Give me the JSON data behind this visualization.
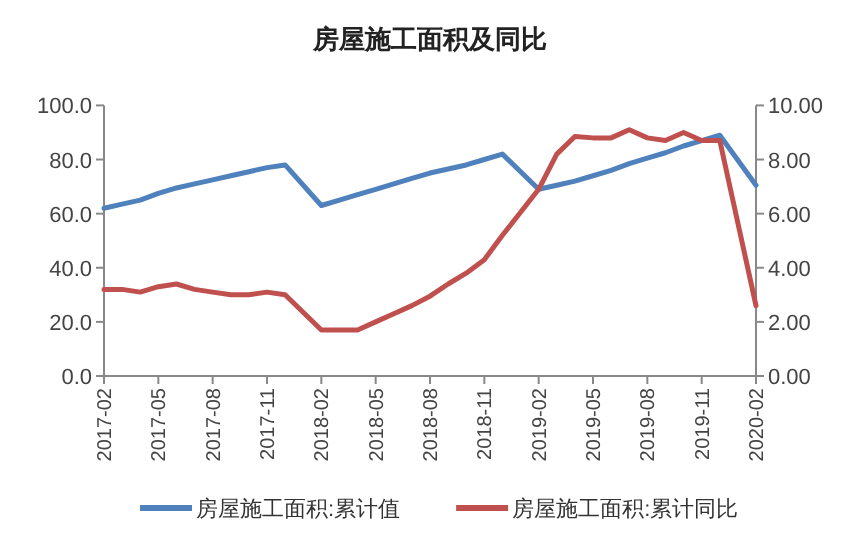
{
  "chart_data": {
    "type": "line",
    "title": "房屋施工面积及同比",
    "categories": [
      "2017-02",
      null,
      null,
      "2017-05",
      null,
      null,
      "2017-08",
      null,
      null,
      "2017-11",
      null,
      null,
      "2018-02",
      null,
      null,
      "2018-05",
      null,
      null,
      "2018-08",
      null,
      null,
      "2018-11",
      null,
      null,
      "2019-02",
      null,
      null,
      "2019-05",
      null,
      null,
      "2019-08",
      null,
      null,
      "2019-11",
      null,
      null,
      "2020-02"
    ],
    "series": [
      {
        "name": "房屋施工面积:累计值",
        "color": "#4f81bd",
        "values": [
          62,
          63.5,
          65,
          67.5,
          69.5,
          71,
          72.5,
          74,
          75.5,
          77,
          78,
          null,
          63,
          65,
          67,
          69,
          71,
          73,
          75,
          76.5,
          78,
          80,
          82,
          null,
          69,
          70.5,
          72,
          74,
          76,
          78.5,
          80.5,
          82.5,
          85,
          87,
          89,
          null,
          70.5
        ]
      },
      {
        "name": "房屋施工面积:累计同比",
        "color": "#c0504d",
        "axis": "y2",
        "values": [
          3.2,
          3.2,
          3.1,
          3.3,
          3.4,
          3.2,
          3.1,
          3.0,
          3.0,
          3.1,
          3.0,
          null,
          1.7,
          1.7,
          1.7,
          2.0,
          2.3,
          2.6,
          2.95,
          3.4,
          3.8,
          4.3,
          5.2,
          null,
          6.9,
          8.2,
          8.85,
          8.8,
          8.8,
          9.1,
          8.8,
          8.7,
          9.0,
          8.7,
          8.7,
          null,
          2.6
        ]
      }
    ],
    "ylim": [
      0,
      100
    ],
    "yticks": [
      {
        "value": 0,
        "label": "0.0"
      },
      {
        "value": 20,
        "label": "20.0"
      },
      {
        "value": 40,
        "label": "40.0"
      },
      {
        "value": 60,
        "label": "60.0"
      },
      {
        "value": 80,
        "label": "80.0"
      },
      {
        "value": 100,
        "label": "100.0"
      }
    ],
    "y2lim": [
      0,
      10
    ],
    "y2ticks": [
      {
        "value": 0,
        "label": "0.00"
      },
      {
        "value": 2,
        "label": "2.00"
      },
      {
        "value": 4,
        "label": "4.00"
      },
      {
        "value": 6,
        "label": "6.00"
      },
      {
        "value": 8,
        "label": "8.00"
      },
      {
        "value": 10,
        "label": "10.00"
      }
    ],
    "legend": "bottom"
  }
}
